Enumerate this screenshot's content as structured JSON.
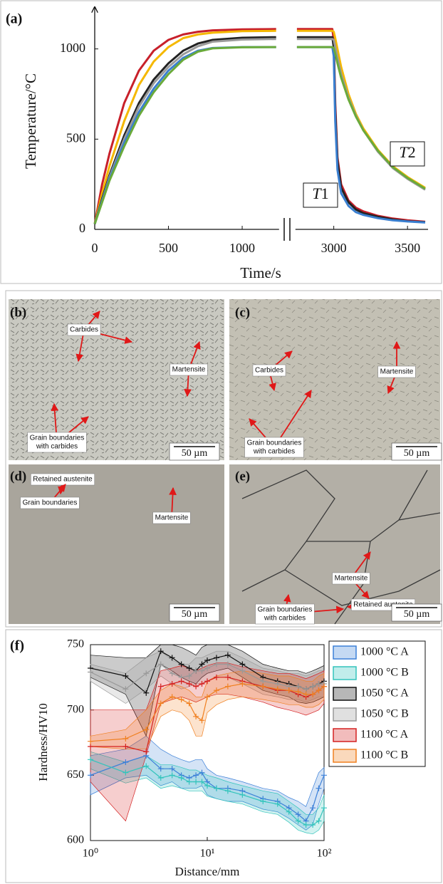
{
  "chart_data": [
    {
      "type": "line",
      "panel_label": "(a)",
      "x_label": "Time/s",
      "y_label": "Temperature/°C",
      "x": [
        0,
        50,
        100,
        200,
        300,
        400,
        500,
        600,
        700,
        800,
        1000,
        1230,
        2000,
        2750,
        2990,
        3000,
        3010,
        3025,
        3050,
        3100,
        3150,
        3200,
        3300,
        3400,
        3500,
        3620
      ],
      "xlim": [
        0,
        3620
      ],
      "x_break": [
        1250,
        2740
      ],
      "ylim": [
        0,
        1200
      ],
      "xticks": [
        0,
        500,
        1000,
        3000,
        3500
      ],
      "yticks": [
        0,
        500,
        1000
      ],
      "annotations": [
        "T1",
        "T2"
      ],
      "series": [
        {
          "color": "#c8202a",
          "values": [
            30,
            250,
            420,
            700,
            880,
            990,
            1050,
            1080,
            1095,
            1103,
            1108,
            1110,
            null,
            1110,
            1110,
            1050,
            700,
            400,
            250,
            160,
            120,
            100,
            75,
            60,
            50,
            42
          ]
        },
        {
          "color": "#f5b800",
          "values": [
            30,
            200,
            350,
            600,
            800,
            930,
            1010,
            1060,
            1080,
            1090,
            1098,
            1100,
            null,
            1100,
            1100,
            1095,
            1060,
            1000,
            900,
            750,
            640,
            560,
            440,
            350,
            290,
            230
          ]
        },
        {
          "color": "#222222",
          "values": [
            30,
            170,
            300,
            520,
            700,
            830,
            920,
            990,
            1030,
            1050,
            1062,
            1065,
            null,
            1065,
            1065,
            1010,
            650,
            380,
            230,
            150,
            110,
            90,
            70,
            55,
            45,
            40
          ]
        },
        {
          "color": "#9a9a9a",
          "values": [
            30,
            160,
            290,
            500,
            680,
            810,
            900,
            970,
            1015,
            1040,
            1052,
            1055,
            null,
            1055,
            1055,
            1050,
            1010,
            950,
            860,
            730,
            630,
            550,
            430,
            340,
            280,
            220
          ]
        },
        {
          "color": "#3a7fd0",
          "values": [
            30,
            160,
            280,
            480,
            650,
            780,
            880,
            950,
            990,
            1005,
            1010,
            1010,
            null,
            1010,
            1010,
            960,
            600,
            330,
            200,
            130,
            95,
            80,
            62,
            50,
            44,
            38
          ]
        },
        {
          "color": "#6aaa3a",
          "values": [
            30,
            150,
            270,
            460,
            630,
            760,
            860,
            940,
            985,
            1003,
            1009,
            1010,
            null,
            1010,
            1010,
            1005,
            975,
            920,
            840,
            720,
            625,
            550,
            435,
            345,
            285,
            225
          ]
        }
      ]
    },
    {
      "type": "line",
      "panel_label": "(f)",
      "x_label": "Distance/mm",
      "y_label": "Hardness/HV10",
      "log_x": true,
      "legend": "outside-right",
      "x": [
        1,
        2,
        3,
        4,
        5,
        6,
        7,
        8,
        9,
        10,
        12,
        15,
        20,
        30,
        40,
        50,
        60,
        70,
        80,
        90,
        100
      ],
      "xlim": [
        1,
        100
      ],
      "ylim": [
        600,
        750
      ],
      "xticks": [
        {
          "value": 1,
          "label": "10⁰"
        },
        {
          "value": 10,
          "label": "10¹"
        },
        {
          "value": 100,
          "label": "10²"
        }
      ],
      "yticks": [
        600,
        650,
        700,
        750
      ],
      "series": [
        {
          "name": "1000 °C A",
          "color": "#3c80d8",
          "values": [
            650,
            660,
            665,
            655,
            655,
            650,
            648,
            650,
            652,
            645,
            640,
            640,
            638,
            632,
            630,
            625,
            620,
            615,
            625,
            640,
            650
          ],
          "upper": [
            665,
            670,
            680,
            670,
            665,
            662,
            660,
            662,
            662,
            655,
            650,
            648,
            645,
            640,
            638,
            633,
            630,
            626,
            640,
            652,
            656
          ],
          "lower": [
            635,
            648,
            650,
            642,
            645,
            640,
            640,
            640,
            642,
            635,
            632,
            630,
            630,
            624,
            622,
            617,
            612,
            608,
            612,
            628,
            640
          ]
        },
        {
          "name": "1000 °C B",
          "color": "#33c4bc",
          "values": [
            662,
            652,
            657,
            648,
            650,
            648,
            645,
            645,
            645,
            642,
            640,
            638,
            635,
            630,
            628,
            622,
            615,
            612,
            612,
            615,
            625
          ],
          "upper": [
            668,
            660,
            665,
            658,
            658,
            656,
            654,
            654,
            652,
            650,
            648,
            645,
            642,
            638,
            636,
            630,
            625,
            620,
            620,
            625,
            635
          ],
          "lower": [
            655,
            644,
            648,
            640,
            642,
            640,
            638,
            638,
            638,
            634,
            632,
            630,
            628,
            622,
            620,
            614,
            608,
            606,
            605,
            608,
            615
          ]
        },
        {
          "name": "1050 °C A",
          "color": "#111111",
          "values": [
            732,
            726,
            713,
            745,
            740,
            735,
            732,
            730,
            735,
            738,
            740,
            742,
            735,
            725,
            722,
            720,
            718,
            716,
            718,
            720,
            722
          ],
          "upper": [
            742,
            740,
            740,
            750,
            750,
            748,
            745,
            742,
            748,
            750,
            750,
            750,
            745,
            735,
            732,
            730,
            730,
            728,
            730,
            732,
            734
          ],
          "lower": [
            725,
            712,
            680,
            735,
            730,
            725,
            722,
            720,
            725,
            728,
            730,
            732,
            725,
            715,
            712,
            710,
            706,
            705,
            706,
            708,
            710
          ]
        },
        {
          "name": "1050 °C B",
          "color": "#999999",
          "values": [
            729,
            716,
            728,
            735,
            728,
            725,
            726,
            730,
            730,
            732,
            735,
            735,
            730,
            722,
            720,
            718,
            718,
            716,
            718,
            720,
            720
          ],
          "upper": [
            735,
            728,
            740,
            745,
            738,
            735,
            735,
            740,
            740,
            742,
            745,
            745,
            740,
            732,
            730,
            728,
            728,
            726,
            728,
            730,
            730
          ],
          "lower": [
            722,
            705,
            716,
            726,
            720,
            716,
            718,
            720,
            720,
            722,
            725,
            725,
            720,
            712,
            710,
            708,
            708,
            706,
            708,
            710,
            710
          ]
        },
        {
          "name": "1100 °C A",
          "color": "#d42020",
          "values": [
            672,
            672,
            668,
            718,
            720,
            722,
            720,
            718,
            720,
            722,
            725,
            725,
            722,
            718,
            715,
            715,
            712,
            710,
            712,
            715,
            718
          ],
          "upper": [
            700,
            700,
            700,
            730,
            732,
            734,
            732,
            730,
            732,
            734,
            736,
            736,
            733,
            730,
            728,
            728,
            726,
            724,
            726,
            728,
            730
          ],
          "lower": [
            645,
            615,
            665,
            705,
            708,
            710,
            708,
            706,
            708,
            710,
            712,
            712,
            710,
            706,
            702,
            700,
            698,
            696,
            698,
            700,
            705
          ]
        },
        {
          "name": "1100 °C B",
          "color": "#f08020",
          "values": [
            676,
            678,
            685,
            705,
            710,
            708,
            705,
            695,
            692,
            710,
            715,
            718,
            720,
            718,
            716,
            715,
            714,
            712,
            712,
            715,
            718
          ],
          "upper": [
            680,
            685,
            700,
            715,
            720,
            718,
            715,
            710,
            710,
            722,
            726,
            728,
            730,
            728,
            726,
            726,
            724,
            722,
            722,
            726,
            728
          ],
          "lower": [
            672,
            670,
            670,
            695,
            700,
            698,
            692,
            680,
            680,
            698,
            704,
            708,
            710,
            708,
            706,
            704,
            704,
            702,
            702,
            704,
            708
          ]
        }
      ]
    }
  ],
  "micrographs": [
    {
      "label": "(b)",
      "annotations": [
        [
          "Carbides"
        ],
        [
          "Martensite"
        ],
        [
          "Grain boundaries",
          "with carbides"
        ]
      ],
      "scale_bar": "50 µm"
    },
    {
      "label": "(c)",
      "annotations": [
        [
          "Carbides"
        ],
        [
          "Martensite"
        ],
        [
          "Grain boundaries",
          "with carbides"
        ]
      ],
      "scale_bar": "50 µm"
    },
    {
      "label": "(d)",
      "annotations": [
        [
          "Retained austenite"
        ],
        [
          "Grain boundaries"
        ],
        [
          "Martensite"
        ]
      ],
      "scale_bar": "50 µm"
    },
    {
      "label": "(e)",
      "annotations": [
        [
          "Martensite"
        ],
        [
          "Retained austenite"
        ],
        [
          "Grain boundaries",
          "with carbides"
        ]
      ],
      "scale_bar": "50 µm"
    }
  ]
}
